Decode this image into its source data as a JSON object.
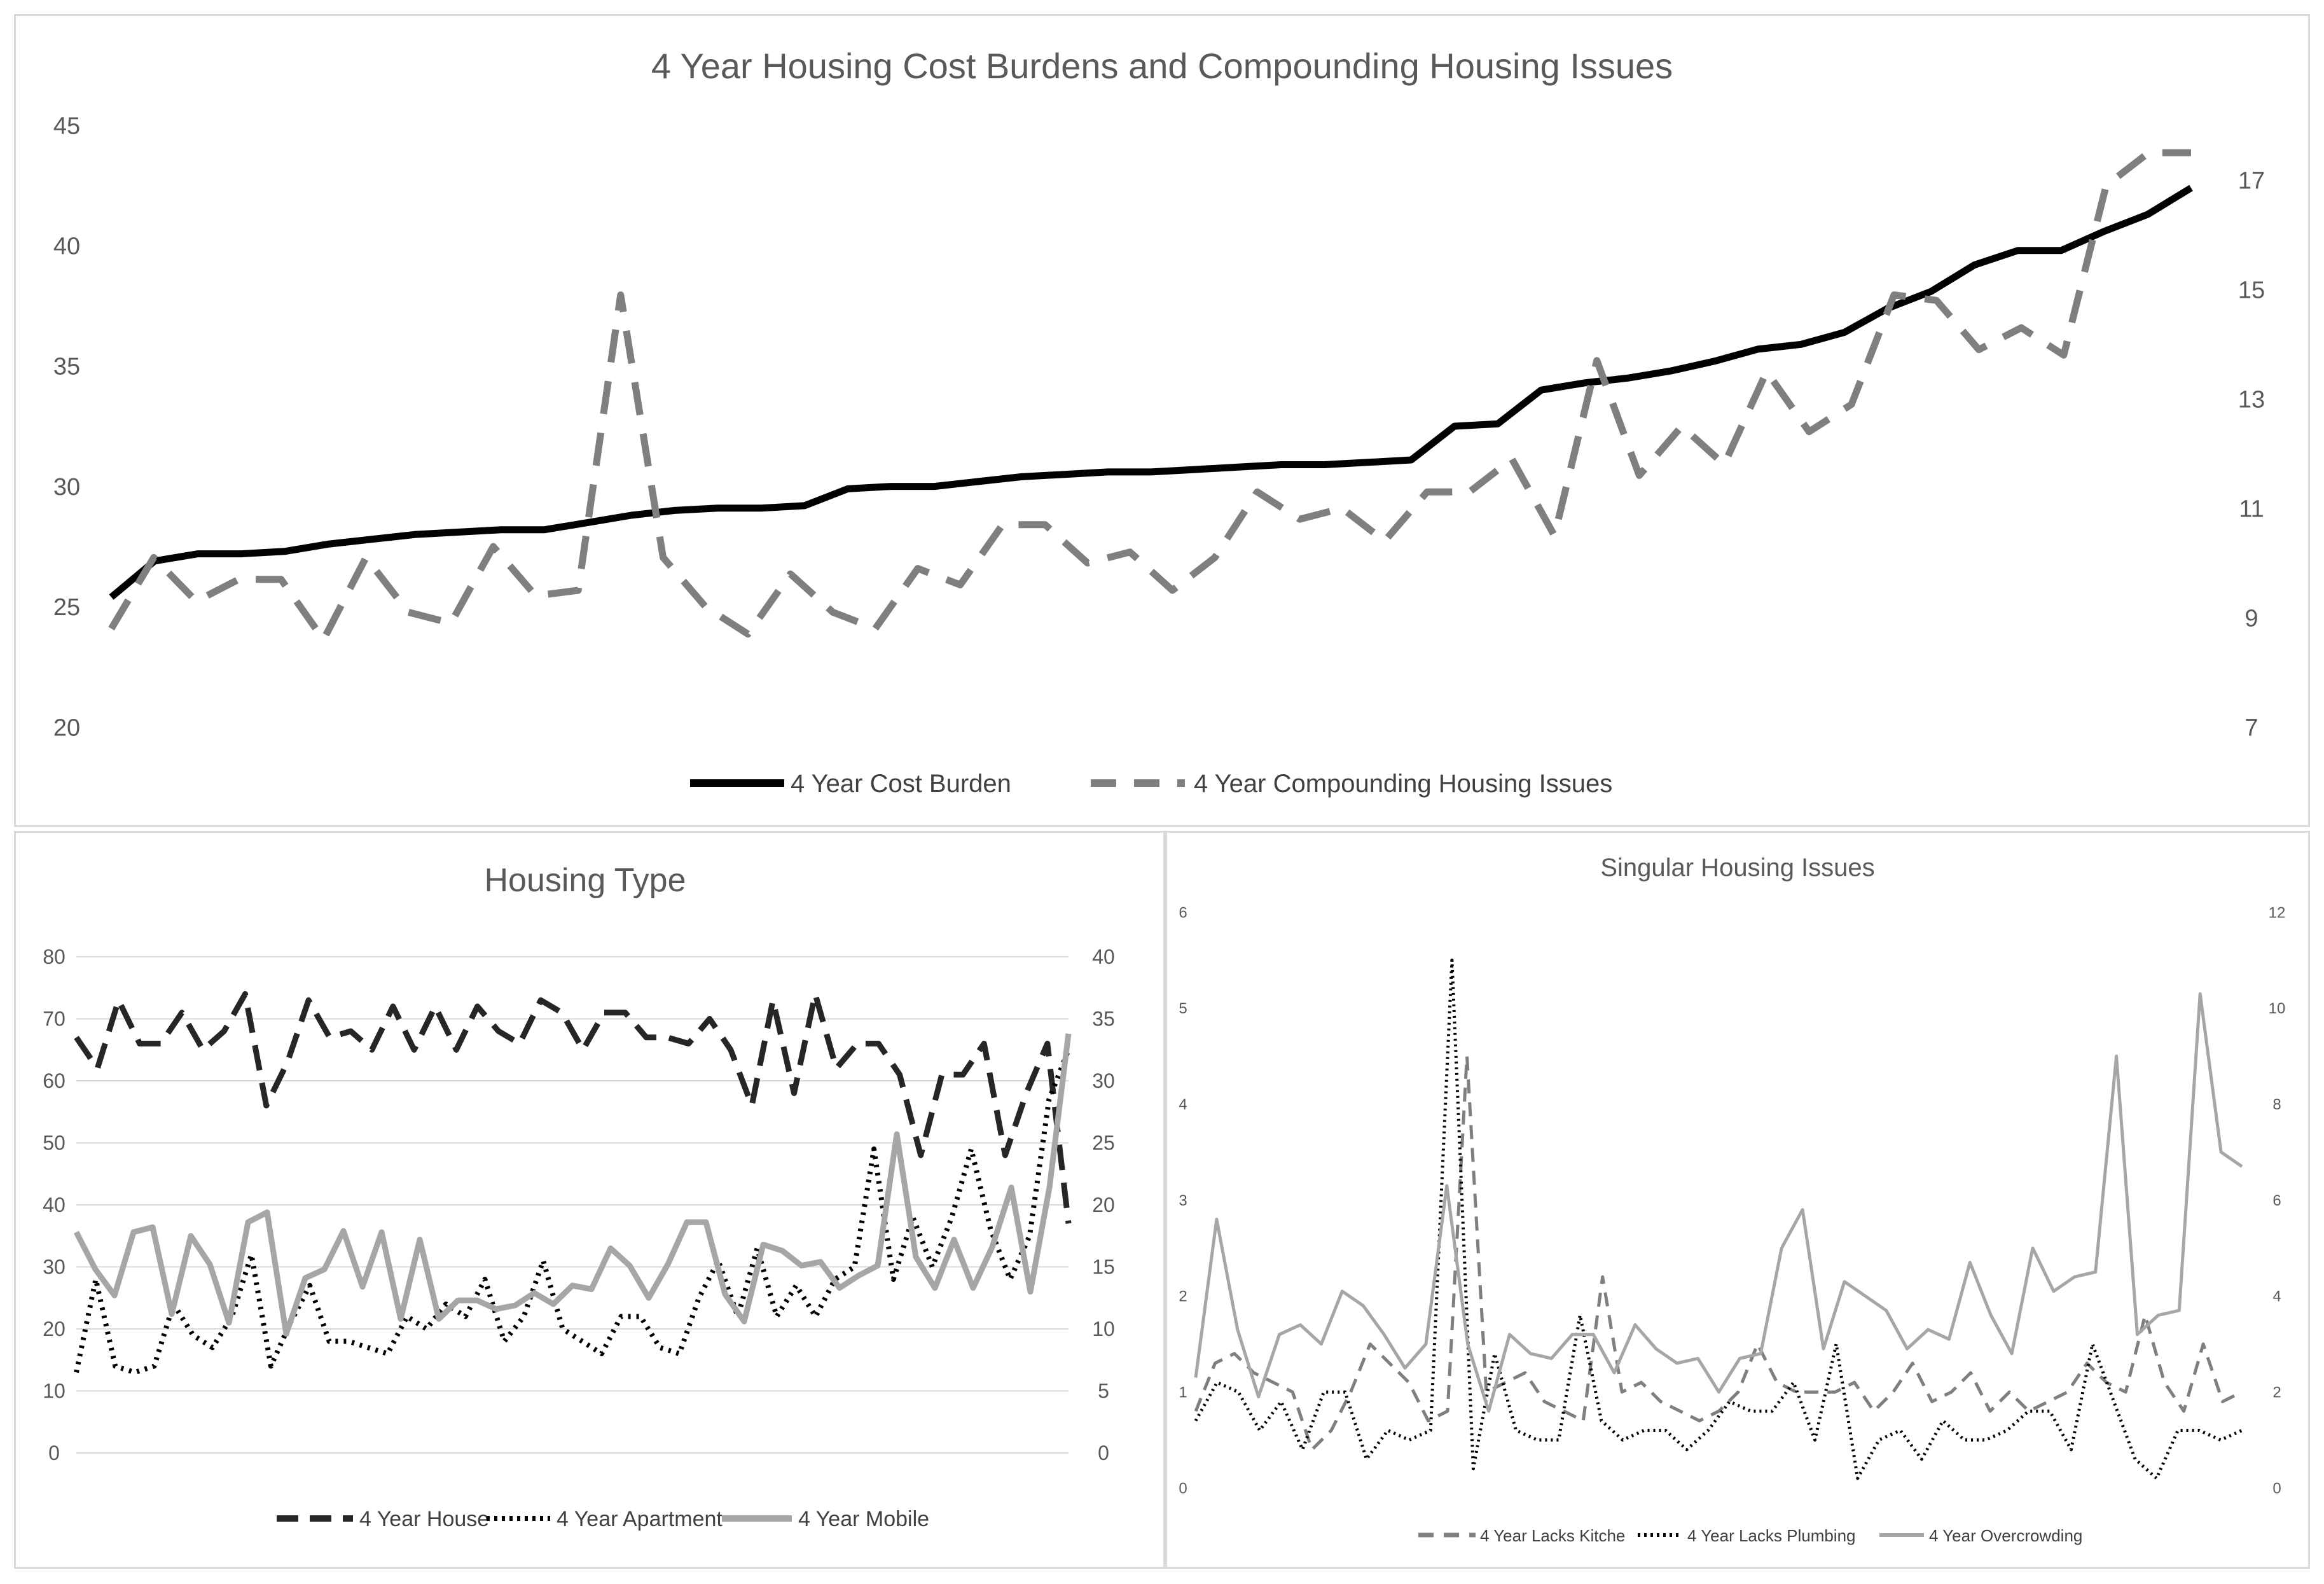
{
  "chart_data": [
    {
      "type": "line",
      "title": "4 Year Housing Cost Burdens and Compounding Housing Issues",
      "y_left": {
        "ticks": [
          "20",
          "25",
          "30",
          "35",
          "40",
          "45"
        ],
        "range": [
          20,
          45
        ]
      },
      "y_right": {
        "ticks": [
          "7",
          "9",
          "11",
          "13",
          "15",
          "17"
        ],
        "range": [
          7,
          18
        ]
      },
      "series": [
        {
          "name": "4 Year Cost Burden",
          "axis": "left",
          "color": "#000000",
          "dash": "solid",
          "values": [
            25.4,
            26.9,
            27.2,
            27.2,
            27.3,
            27.6,
            27.8,
            28.0,
            28.1,
            28.2,
            28.2,
            28.5,
            28.8,
            29.0,
            29.1,
            29.1,
            29.2,
            29.9,
            30.0,
            30.0,
            30.2,
            30.4,
            30.5,
            30.6,
            30.6,
            30.7,
            30.8,
            30.9,
            30.9,
            31.0,
            31.1,
            32.5,
            32.6,
            34.0,
            34.3,
            34.5,
            34.8,
            35.2,
            35.7,
            35.9,
            36.4,
            37.4,
            38.1,
            39.2,
            39.8,
            39.8,
            40.6,
            41.3,
            42.4
          ]
        },
        {
          "name": "4 Year Compounding Housing Issues",
          "axis": "right",
          "color": "#7f7f7f",
          "dash": "dashed",
          "values": [
            8.8,
            10.1,
            9.3,
            9.7,
            9.7,
            8.6,
            10.1,
            9.1,
            8.9,
            10.3,
            9.4,
            9.5,
            14.9,
            10.1,
            9.2,
            8.7,
            9.8,
            9.1,
            8.8,
            9.9,
            9.6,
            10.7,
            10.7,
            10.0,
            10.2,
            9.5,
            10.1,
            11.3,
            10.8,
            11.0,
            10.4,
            11.3,
            11.3,
            11.9,
            10.5,
            13.7,
            11.6,
            12.5,
            11.8,
            13.5,
            12.4,
            12.9,
            14.9,
            14.8,
            13.9,
            14.3,
            13.8,
            16.9,
            17.5,
            17.5
          ]
        }
      ],
      "legend": "bottom"
    },
    {
      "type": "line",
      "title": "Housing Type",
      "y_left": {
        "ticks": [
          "0",
          "10",
          "20",
          "30",
          "40",
          "50",
          "60",
          "70",
          "80"
        ],
        "range": [
          0,
          80
        ]
      },
      "y_right": {
        "ticks": [
          "0",
          "5",
          "10",
          "15",
          "20",
          "25",
          "30",
          "35",
          "40"
        ],
        "range": [
          0,
          40
        ]
      },
      "series": [
        {
          "name": "4 Year House",
          "axis": "left",
          "color": "#262626",
          "dash": "longdash",
          "values": [
            67,
            62,
            73,
            66,
            66,
            71,
            65,
            68,
            74,
            56,
            63,
            73,
            67,
            68,
            65,
            72,
            65,
            72,
            65,
            72,
            68,
            66,
            73,
            71,
            65,
            71,
            71,
            67,
            67,
            66,
            70,
            65,
            56,
            73,
            58,
            74,
            62,
            66,
            66,
            61,
            48,
            61,
            61,
            66,
            48,
            58,
            66,
            37
          ]
        },
        {
          "name": "4 Year Apartment",
          "axis": "left",
          "color": "#000000",
          "dash": "dotted",
          "values": [
            13,
            28,
            14,
            13,
            14,
            24,
            19,
            17,
            22,
            32,
            14,
            21,
            27,
            18,
            18,
            17,
            16,
            22,
            20,
            24,
            22,
            28,
            18,
            22,
            31,
            20,
            18,
            16,
            22,
            22,
            17,
            16,
            25,
            31,
            22,
            33,
            22,
            27,
            22,
            28,
            30,
            49,
            28,
            38,
            30,
            38,
            49,
            36,
            28,
            35,
            57,
            65
          ]
        },
        {
          "name": "4 Year Mobile",
          "axis": "right",
          "color": "#a6a6a6",
          "dash": "solid",
          "values": [
            17.8,
            14.8,
            12.7,
            17.8,
            18.2,
            11.2,
            17.5,
            15.2,
            10.5,
            18.6,
            19.4,
            9.6,
            14.1,
            14.8,
            17.9,
            13.4,
            17.8,
            10.8,
            17.2,
            10.8,
            12.3,
            12.3,
            11.6,
            11.9,
            12.9,
            12.0,
            13.5,
            13.2,
            16.5,
            15.1,
            12.5,
            15.2,
            18.6,
            18.6,
            12.8,
            10.6,
            16.8,
            16.3,
            15.1,
            15.4,
            13.3,
            14.3,
            15.1,
            25.7,
            15.8,
            13.3,
            17.2,
            13.3,
            16.6,
            21.4,
            13.0,
            21.4,
            33.8
          ]
        }
      ],
      "legend": "bottom"
    },
    {
      "type": "line",
      "title": "Singular Housing Issues",
      "y_left": {
        "ticks": [
          "0",
          "1",
          "2",
          "3",
          "4",
          "5",
          "6"
        ],
        "range": [
          0,
          6
        ]
      },
      "y_right": {
        "ticks": [
          "0",
          "2",
          "4",
          "6",
          "8",
          "10",
          "12"
        ],
        "range": [
          0,
          12
        ]
      },
      "series": [
        {
          "name": "4 Year Lacks Kitche",
          "axis": "left",
          "color": "#7f7f7f",
          "dash": "dashed",
          "values": [
            0.8,
            1.3,
            1.4,
            1.2,
            1.1,
            1.0,
            0.4,
            0.6,
            1.0,
            1.5,
            1.3,
            1.1,
            0.7,
            0.8,
            4.5,
            1.0,
            1.1,
            1.2,
            0.9,
            0.8,
            0.7,
            2.2,
            1.0,
            1.1,
            0.9,
            0.8,
            0.7,
            0.8,
            1.0,
            1.5,
            1.1,
            1.0,
            1.0,
            1.0,
            1.1,
            0.8,
            1.0,
            1.3,
            0.9,
            1.0,
            1.2,
            0.8,
            1.0,
            0.8,
            0.9,
            1.0,
            1.3,
            1.1,
            1.0,
            1.8,
            1.1,
            0.8,
            1.5,
            0.9,
            1.0
          ]
        },
        {
          "name": "4 Year Lacks Plumbing",
          "axis": "left",
          "color": "#000000",
          "dash": "dotted",
          "values": [
            0.7,
            1.1,
            1.0,
            0.6,
            0.9,
            0.4,
            1.0,
            1.0,
            0.3,
            0.6,
            0.5,
            0.6,
            5.5,
            0.2,
            1.4,
            0.6,
            0.5,
            0.5,
            1.8,
            0.7,
            0.5,
            0.6,
            0.6,
            0.4,
            0.6,
            0.9,
            0.8,
            0.8,
            1.1,
            0.5,
            1.5,
            0.1,
            0.5,
            0.6,
            0.3,
            0.7,
            0.5,
            0.5,
            0.6,
            0.8,
            0.8,
            0.4,
            1.5,
            0.9,
            0.3,
            0.1,
            0.6,
            0.6,
            0.5,
            0.6
          ]
        },
        {
          "name": "4 Year Overcrowding",
          "axis": "right",
          "color": "#a6a6a6",
          "dash": "solid",
          "values": [
            2.3,
            5.6,
            3.3,
            1.9,
            3.2,
            3.4,
            3.0,
            4.1,
            3.8,
            3.2,
            2.5,
            3.0,
            6.3,
            3.0,
            1.6,
            3.2,
            2.8,
            2.7,
            3.2,
            3.2,
            2.4,
            3.4,
            2.9,
            2.6,
            2.7,
            2.0,
            2.7,
            2.8,
            5.0,
            5.8,
            2.9,
            4.3,
            4.0,
            3.7,
            2.9,
            3.3,
            3.1,
            4.7,
            3.6,
            2.8,
            5.0,
            4.1,
            4.4,
            4.5,
            9.0,
            3.2,
            3.6,
            3.7,
            10.3,
            7.0,
            6.7
          ]
        }
      ],
      "legend": "bottom"
    }
  ]
}
